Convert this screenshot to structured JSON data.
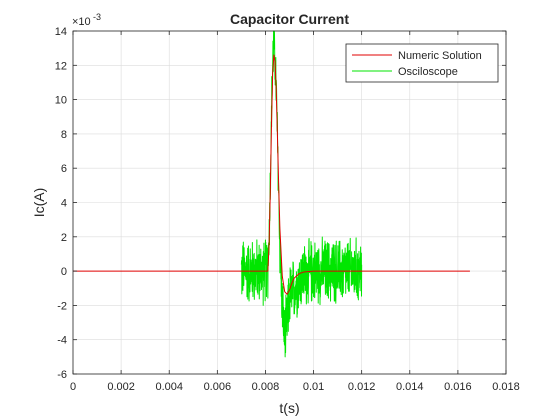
{
  "chart_data": {
    "type": "line",
    "title": "Capacitor Current",
    "xlabel": "t(s)",
    "ylabel": "Ic(A)",
    "y_exponent_label": "×10",
    "y_exponent": "-3",
    "xlim": [
      0,
      0.018
    ],
    "ylim": [
      -6,
      14
    ],
    "x_ticks": [
      0,
      0.002,
      0.004,
      0.006,
      0.008,
      0.01,
      0.012,
      0.014,
      0.016,
      0.018
    ],
    "x_tick_labels": [
      "0",
      "0.002",
      "0.004",
      "0.006",
      "0.008",
      "0.01",
      "0.012",
      "0.014",
      "0.016",
      "0.018"
    ],
    "y_ticks": [
      -6,
      -4,
      -2,
      0,
      2,
      4,
      6,
      8,
      10,
      12,
      14
    ],
    "y_tick_labels": [
      "-6",
      "-4",
      "-2",
      "0",
      "2",
      "4",
      "6",
      "8",
      "10",
      "12",
      "14"
    ],
    "grid": true,
    "legend_position": "top-right",
    "series": [
      {
        "name": "Numeric Solution",
        "color": "#e00000",
        "x": [
          0,
          0.007,
          0.0081,
          0.00815,
          0.0082,
          0.00825,
          0.0083,
          0.00835,
          0.0084,
          0.00845,
          0.0085,
          0.00855,
          0.0086,
          0.0087,
          0.0088,
          0.0089,
          0.009,
          0.0091,
          0.0092,
          0.0094,
          0.0096,
          0.01,
          0.0105,
          0.011,
          0.012,
          0.0165
        ],
        "y": [
          0,
          0,
          0,
          1.5,
          4.5,
          8.5,
          11.5,
          12.6,
          12.2,
          10.5,
          7.8,
          5,
          2.5,
          -0.3,
          -1.2,
          -1.35,
          -1.1,
          -0.7,
          -0.4,
          -0.15,
          -0.05,
          0,
          0,
          0,
          0,
          0
        ]
      },
      {
        "name": "Osciloscope",
        "color": "#00e600",
        "x": [
          0.007,
          0.0075,
          0.008,
          0.0081,
          0.00815,
          0.0082,
          0.00825,
          0.0083,
          0.00835,
          0.0084,
          0.00845,
          0.0085,
          0.00855,
          0.0086,
          0.0087,
          0.0088,
          0.0089,
          0.009,
          0.0095,
          0.01,
          0.0105,
          0.011,
          0.012
        ],
        "y": [
          0,
          0,
          0,
          0.3,
          2,
          5,
          9,
          12,
          13.5,
          12.5,
          10.5,
          7.5,
          4.5,
          1.5,
          -2,
          -4,
          -3,
          -1.5,
          -0.3,
          0,
          0,
          0,
          0
        ],
        "noise_amplitude": 2.2,
        "noise_x_range": [
          0.007,
          0.012
        ]
      }
    ]
  }
}
